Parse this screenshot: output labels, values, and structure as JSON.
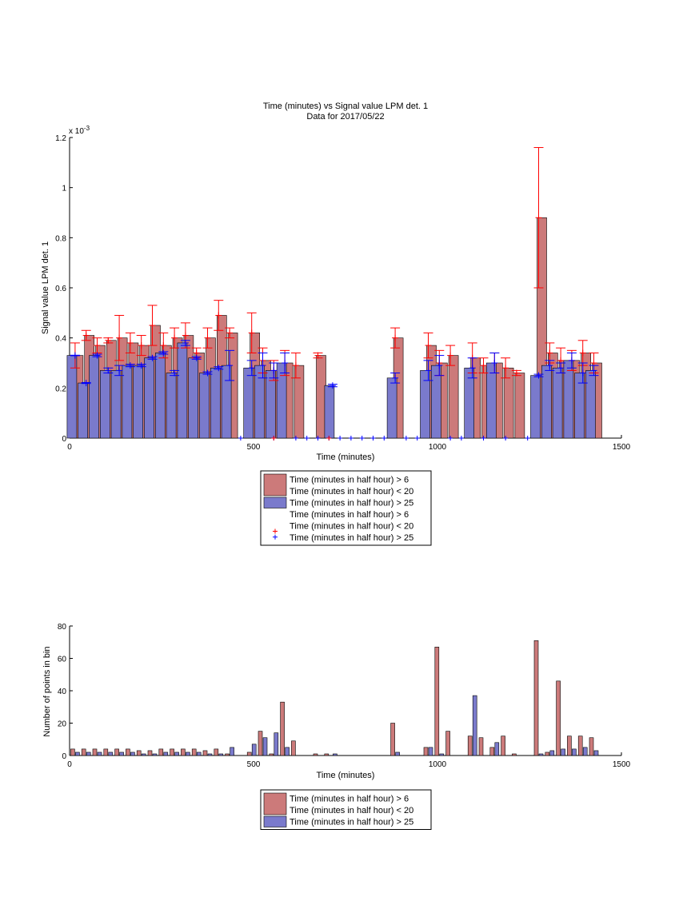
{
  "colors": {
    "red_bar": "#cc7a7a",
    "blue_bar": "#7a7acc",
    "red_err": "#ff0000",
    "blue_err": "#0000ff",
    "axis": "#000000"
  },
  "chart_data": [
    {
      "type": "bar",
      "title": "Time (minutes) vs Signal value LPM det. 1",
      "subtitle": "Data for 2017/05/22",
      "xlabel": "Time (minutes)",
      "ylabel": "Signal value LPM det. 1",
      "exponent_label": "x 10",
      "exponent_power": "-3",
      "xlim": [
        0,
        1500
      ],
      "ylim": [
        0,
        0.0012
      ],
      "xticks": [
        0,
        500,
        1000,
        1500
      ],
      "xtick_labels": [
        "0",
        "500",
        "1000",
        "1500"
      ],
      "yticks": [
        0,
        0.0002,
        0.0004,
        0.0006,
        0.0008,
        0.001,
        0.0012
      ],
      "ytick_labels": [
        "0",
        "0.2",
        "0.4",
        "0.6",
        "0.8",
        "1",
        "1.2"
      ],
      "grid": false,
      "legend_position": "below",
      "legend": [
        "Time (minutes in half hour) > 6",
        "Time (minutes in half hour) < 20",
        "Time (minutes in half hour) > 25",
        "Time (minutes in half hour) > 6",
        "Time (minutes in half hour) < 20",
        "Time (minutes in half hour) > 25"
      ],
      "series": [
        {
          "name": "Time (minutes in half hour) > 6",
          "color": "#cc7a7a",
          "x": [
            15,
            45,
            75,
            105,
            135,
            165,
            195,
            225,
            255,
            285,
            315,
            345,
            375,
            405,
            435,
            495,
            525,
            555,
            585,
            615,
            675,
            885,
            975,
            1005,
            1035,
            1095,
            1125,
            1155,
            1185,
            1215,
            1275,
            1305,
            1335,
            1365,
            1395,
            1425
          ],
          "values": [
            0.00033,
            0.00041,
            0.00037,
            0.00039,
            0.0004,
            0.00038,
            0.00037,
            0.00045,
            0.00037,
            0.0004,
            0.00041,
            0.00034,
            0.0004,
            0.00049,
            0.00042,
            0.00042,
            0.00031,
            0.00027,
            0.0003,
            0.00029,
            0.00033,
            0.0004,
            0.00037,
            0.0003,
            0.00033,
            0.00032,
            0.00029,
            0.0003,
            0.00028,
            0.00026,
            0.00088,
            0.00034,
            0.00031,
            0.00031,
            0.00034,
            0.0003
          ],
          "err": [
            5e-05,
            2e-05,
            3e-05,
            1e-05,
            9e-05,
            4e-05,
            4e-05,
            8e-05,
            5e-05,
            4e-05,
            5e-05,
            2e-05,
            4e-05,
            6e-05,
            2e-05,
            8e-05,
            5e-05,
            4e-05,
            5e-05,
            5e-05,
            1e-05,
            4e-05,
            5e-05,
            5e-05,
            4e-05,
            6e-05,
            3e-05,
            4e-05,
            4e-05,
            1e-05,
            0.00028,
            4e-05,
            5e-05,
            4e-05,
            5e-05,
            4e-05
          ]
        },
        {
          "name": "Time (minutes in half hour) > 25",
          "color": "#7a7acc",
          "x": [
            15,
            45,
            75,
            105,
            135,
            165,
            195,
            225,
            255,
            285,
            315,
            345,
            375,
            405,
            435,
            495,
            525,
            555,
            585,
            715,
            885,
            975,
            1005,
            1095,
            1155,
            1275,
            1305,
            1335,
            1365,
            1395,
            1425
          ],
          "values": [
            0.00033,
            0.00022,
            0.00033,
            0.00027,
            0.00027,
            0.00029,
            0.00029,
            0.00032,
            0.00034,
            0.00026,
            0.00038,
            0.00032,
            0.00026,
            0.00028,
            0.00029,
            0.00028,
            0.00029,
            0.00027,
            0.0003,
            0.00021,
            0.00024,
            0.00027,
            0.00029,
            0.00028,
            0.0003,
            0.00025,
            0.00029,
            0.00028,
            0.00031,
            0.00026,
            0.00027
          ],
          "err": [
            1e-06,
            2e-06,
            5e-06,
            1e-05,
            2e-05,
            5e-06,
            5e-06,
            5e-06,
            5e-06,
            1e-05,
            1e-05,
            5e-06,
            5e-06,
            5e-06,
            6e-05,
            3e-05,
            5e-05,
            3e-05,
            4e-05,
            5e-06,
            2e-05,
            4e-05,
            4e-05,
            4e-05,
            4e-05,
            5e-06,
            2e-05,
            2e-05,
            3e-05,
            4e-05,
            2e-05
          ]
        },
        {
          "name": "Time (minutes in half hour) > 25 (empty bins)",
          "color": "#0000ff",
          "x": [
            465,
            555,
            615,
            645,
            675,
            705,
            735,
            765,
            795,
            825,
            855,
            915,
            945,
            1035,
            1065,
            1125,
            1185,
            1245
          ],
          "values": [
            0,
            0,
            0,
            0,
            0,
            0,
            0,
            0,
            0,
            0,
            0,
            0,
            0,
            0,
            0,
            0,
            0,
            0
          ]
        },
        {
          "name": "Time (minutes in half hour) > 6 (empty bins)",
          "color": "#ff0000",
          "x": [
            555,
            705
          ],
          "values": [
            0,
            0
          ]
        }
      ]
    },
    {
      "type": "bar",
      "title": "",
      "xlabel": "Time (minutes)",
      "ylabel": "Number of points in bin",
      "xlim": [
        0,
        1500
      ],
      "ylim": [
        0,
        80
      ],
      "xticks": [
        0,
        500,
        1000,
        1500
      ],
      "xtick_labels": [
        "0",
        "500",
        "1000",
        "1500"
      ],
      "yticks": [
        0,
        20,
        40,
        60,
        80
      ],
      "ytick_labels": [
        "0",
        "20",
        "40",
        "60",
        "80"
      ],
      "grid": false,
      "legend_position": "below",
      "legend": [
        "Time (minutes in half hour) > 6",
        "Time (minutes in half hour) < 20",
        "Time (minutes in half hour) > 25"
      ],
      "series": [
        {
          "name": "Time (minutes in half hour) > 6",
          "color": "#cc7a7a",
          "x": [
            15,
            45,
            75,
            105,
            135,
            165,
            195,
            225,
            255,
            285,
            315,
            345,
            375,
            405,
            435,
            495,
            525,
            555,
            585,
            615,
            675,
            705,
            885,
            975,
            1005,
            1035,
            1095,
            1125,
            1155,
            1185,
            1215,
            1275,
            1305,
            1335,
            1365,
            1395,
            1425
          ],
          "values": [
            4,
            4,
            4,
            4,
            4,
            4,
            3,
            3,
            4,
            4,
            4,
            4,
            3,
            4,
            1,
            2,
            15,
            1,
            33,
            9,
            1,
            1,
            20,
            5,
            67,
            15,
            12,
            11,
            5,
            12,
            1,
            71,
            2,
            46,
            12,
            12,
            11
          ]
        },
        {
          "name": "Time (minutes in half hour) > 25",
          "color": "#7a7acc",
          "x": [
            15,
            45,
            75,
            105,
            135,
            165,
            195,
            225,
            255,
            285,
            315,
            345,
            375,
            405,
            435,
            495,
            525,
            555,
            585,
            715,
            885,
            975,
            1005,
            1095,
            1155,
            1275,
            1305,
            1335,
            1365,
            1395,
            1425
          ],
          "values": [
            2,
            2,
            2,
            2,
            2,
            2,
            1,
            1,
            2,
            2,
            2,
            2,
            1,
            1,
            5,
            7,
            11,
            14,
            5,
            1,
            2,
            5,
            1,
            37,
            8,
            1,
            3,
            4,
            4,
            5,
            3
          ]
        }
      ]
    }
  ]
}
